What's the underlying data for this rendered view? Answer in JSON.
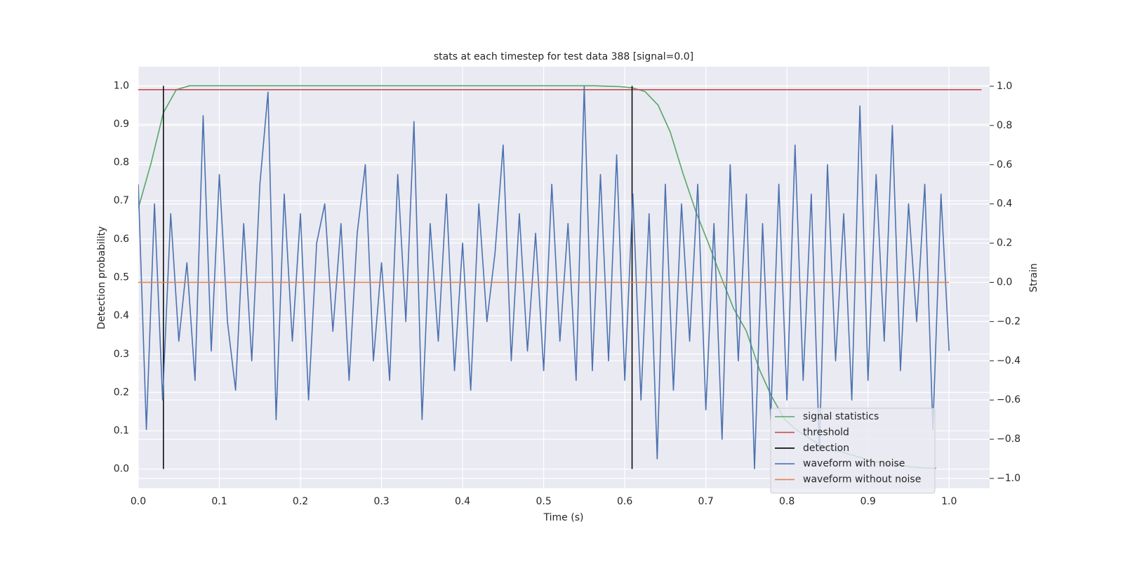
{
  "chart_data": {
    "type": "line",
    "title": "stats at each timestep for test data 388 [signal=0.0]",
    "xlabel": "Time (s)",
    "ylabel": "Detection probability",
    "y2label": "Strain",
    "xlim": [
      0,
      1.05
    ],
    "ylim": [
      -0.05,
      1.05
    ],
    "y2lim": [
      -1.05,
      1.1
    ],
    "xticks": [
      {
        "value": 0,
        "label": "0.0"
      },
      0.1,
      0.2,
      0.3,
      0.4,
      0.5,
      0.6,
      0.7,
      0.8,
      0.9,
      {
        "value": 1,
        "label": "1.0"
      }
    ],
    "yticks": [
      {
        "value": 0,
        "label": "0.0"
      },
      0.1,
      0.2,
      0.3,
      0.4,
      0.5,
      0.6,
      0.7,
      0.8,
      0.9,
      {
        "value": 1,
        "label": "1.0"
      }
    ],
    "y2ticks": [
      {
        "value": -1,
        "label": "−1.0"
      },
      {
        "value": -0.8,
        "label": "−0.8"
      },
      {
        "value": -0.6,
        "label": "−0.6"
      },
      {
        "value": -0.4,
        "label": "−0.4"
      },
      {
        "value": -0.2,
        "label": "−0.2"
      },
      {
        "value": 0,
        "label": "0.0"
      },
      0.2,
      0.4,
      0.6,
      0.8,
      {
        "value": 1,
        "label": "1.0"
      }
    ],
    "grid": true,
    "legend": "lower right",
    "series": [
      {
        "name": "signal statistics",
        "color": "#55a868",
        "axis": "y",
        "x": [
          0,
          0.016,
          0.031,
          0.047,
          0.063,
          0.078,
          0.2,
          0.4,
          0.563,
          0.594,
          0.609,
          0.625,
          0.641,
          0.656,
          0.672,
          0.688,
          0.703,
          0.719,
          0.734,
          0.75,
          0.766,
          0.781,
          0.797,
          0.813,
          0.828,
          0.844,
          0.859,
          0.875,
          0.891,
          0.906,
          0.922,
          0.938,
          0.953,
          0.969,
          0.984
        ],
        "values": [
          0.68,
          0.8,
          0.93,
          0.99,
          1.0,
          1.0,
          1.0,
          1.0,
          1.0,
          0.998,
          0.995,
          0.985,
          0.95,
          0.88,
          0.77,
          0.67,
          0.59,
          0.5,
          0.42,
          0.36,
          0.26,
          0.19,
          0.13,
          0.1,
          0.08,
          0.06,
          0.05,
          0.04,
          0.03,
          0.02,
          0.015,
          0.01,
          0.006,
          0.003,
          0.002
        ]
      },
      {
        "name": "threshold",
        "color": "#c44e52",
        "axis": "y",
        "x": [
          0,
          1.04
        ],
        "values": [
          0.99,
          0.99
        ]
      },
      {
        "name": "detection",
        "color": "#000000",
        "axis": "y",
        "style": "vlines",
        "x": [
          0.031,
          0.609
        ],
        "ymin": 0,
        "ymax": 1
      },
      {
        "name": "waveform with noise",
        "color": "#4c72b0",
        "axis": "y2",
        "x": [
          0,
          0.01,
          0.02,
          0.03,
          0.04,
          0.05,
          0.06,
          0.07,
          0.08,
          0.09,
          0.1,
          0.11,
          0.12,
          0.13,
          0.14,
          0.15,
          0.16,
          0.17,
          0.18,
          0.19,
          0.2,
          0.21,
          0.22,
          0.23,
          0.24,
          0.25,
          0.26,
          0.27,
          0.28,
          0.29,
          0.3,
          0.31,
          0.32,
          0.33,
          0.34,
          0.35,
          0.36,
          0.37,
          0.38,
          0.39,
          0.4,
          0.41,
          0.42,
          0.43,
          0.44,
          0.45,
          0.46,
          0.47,
          0.48,
          0.49,
          0.5,
          0.51,
          0.52,
          0.53,
          0.54,
          0.55,
          0.56,
          0.57,
          0.58,
          0.59,
          0.6,
          0.61,
          0.62,
          0.63,
          0.64,
          0.65,
          0.66,
          0.67,
          0.68,
          0.69,
          0.7,
          0.71,
          0.72,
          0.73,
          0.74,
          0.75,
          0.76,
          0.77,
          0.78,
          0.79,
          0.8,
          0.81,
          0.82,
          0.83,
          0.84,
          0.85,
          0.86,
          0.87,
          0.88,
          0.89,
          0.9,
          0.91,
          0.92,
          0.93,
          0.94,
          0.95,
          0.96,
          0.97,
          0.98,
          0.99,
          1.0
        ],
        "values": [
          0.5,
          -0.75,
          0.4,
          -0.6,
          0.35,
          -0.3,
          0.1,
          -0.5,
          0.85,
          -0.35,
          0.55,
          -0.2,
          -0.55,
          0.3,
          -0.4,
          0.5,
          0.97,
          -0.7,
          0.45,
          -0.3,
          0.35,
          -0.6,
          0.2,
          0.4,
          -0.25,
          0.3,
          -0.5,
          0.25,
          0.6,
          -0.4,
          0.1,
          -0.5,
          0.55,
          -0.2,
          0.82,
          -0.7,
          0.3,
          -0.3,
          0.45,
          -0.45,
          0.2,
          -0.55,
          0.4,
          -0.2,
          0.15,
          0.7,
          -0.4,
          0.35,
          -0.35,
          0.25,
          -0.45,
          0.5,
          -0.3,
          0.3,
          -0.5,
          1.0,
          -0.45,
          0.55,
          -0.4,
          0.65,
          -0.5,
          0.45,
          -0.6,
          0.35,
          -0.9,
          0.5,
          -0.55,
          0.4,
          -0.3,
          0.5,
          -0.65,
          0.3,
          -0.8,
          0.6,
          -0.4,
          0.45,
          -0.95,
          0.3,
          -0.7,
          0.5,
          -0.6,
          0.7,
          -0.5,
          0.45,
          -0.85,
          0.6,
          -0.4,
          0.35,
          -0.6,
          0.9,
          -0.5,
          0.55,
          -0.3,
          0.8,
          -0.45,
          0.4,
          -0.2,
          0.5,
          -0.75,
          0.45,
          -0.35
        ]
      },
      {
        "name": "waveform without noise",
        "color": "#dd8452",
        "axis": "y2",
        "x": [
          0,
          1
        ],
        "values": [
          0,
          0
        ]
      }
    ]
  }
}
